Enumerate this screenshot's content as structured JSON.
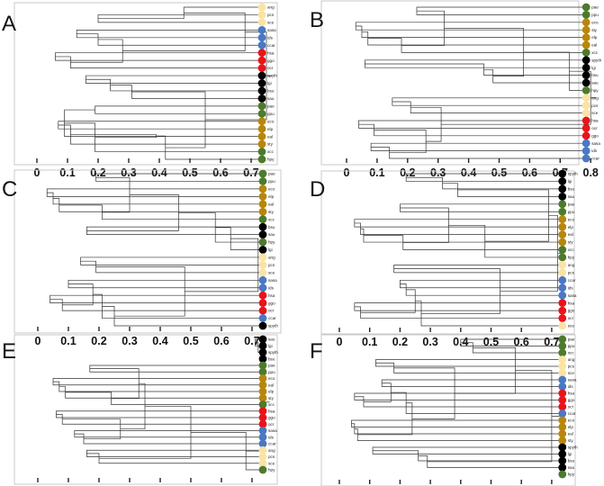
{
  "chart_data": [
    {
      "type": "dendrogram",
      "panel": "A",
      "x_ticks": [
        "0",
        "0.1",
        "0.2",
        "0.3",
        "0.4",
        "0.5",
        "0.6",
        "0.7"
      ],
      "xlim": [
        0,
        0.75
      ],
      "leaves": [
        {
          "name": "ang",
          "group": "beige"
        },
        {
          "name": "pcs",
          "group": "beige"
        },
        {
          "name": "sce",
          "group": "beige"
        },
        {
          "name": "sasa",
          "group": "blue"
        },
        {
          "name": "ids",
          "group": "blue"
        },
        {
          "name": "ccar",
          "group": "blue"
        },
        {
          "name": "hsa",
          "group": "red"
        },
        {
          "name": "ggo",
          "group": "red"
        },
        {
          "name": "ocr",
          "group": "red"
        },
        {
          "name": "spyth",
          "group": "black"
        },
        {
          "name": "lgi",
          "group": "black"
        },
        {
          "name": "bsu",
          "group": "black"
        },
        {
          "name": "sau",
          "group": "black"
        },
        {
          "name": "pae",
          "group": "green"
        },
        {
          "name": "ppu",
          "group": "green"
        },
        {
          "name": "eco",
          "group": "gold"
        },
        {
          "name": "elp",
          "group": "gold"
        },
        {
          "name": "eal",
          "group": "gold"
        },
        {
          "name": "sty",
          "group": "gold"
        },
        {
          "name": "xcc",
          "group": "green"
        },
        {
          "name": "hpy",
          "group": "green"
        }
      ],
      "merges": [
        [
          1,
          2,
          0.2
        ],
        [
          0,
          -1,
          0.48
        ],
        [
          3,
          4,
          0.13
        ],
        [
          -3,
          5,
          0.2
        ],
        [
          6,
          7,
          0.06
        ],
        [
          -5,
          8,
          0.11
        ],
        [
          -4,
          -6,
          0.28
        ],
        [
          -2,
          -7,
          0.68
        ],
        [
          9,
          10,
          0.16
        ],
        [
          -9,
          11,
          0.24
        ],
        [
          -10,
          12,
          0.31
        ],
        [
          13,
          14,
          0.19
        ],
        [
          15,
          16,
          0.07
        ],
        [
          -12,
          17,
          0.09
        ],
        [
          -13,
          18,
          0.11
        ],
        [
          -14,
          19,
          0.19
        ],
        [
          -15,
          -16,
          0.39
        ],
        [
          -17,
          20,
          0.42
        ],
        [
          -11,
          -18,
          0.55
        ],
        [
          -8,
          -19,
          0.75
        ]
      ]
    },
    {
      "type": "dendrogram",
      "panel": "B",
      "x_ticks": [
        "0",
        "0.1",
        "0.2",
        "0.3",
        "0.4",
        "0.5",
        "0.6",
        "0.7",
        "0.8"
      ],
      "xlim": [
        0,
        0.8
      ],
      "leaves": [
        {
          "name": "pae",
          "group": "green"
        },
        {
          "name": "ppu",
          "group": "green"
        },
        {
          "name": "eco",
          "group": "gold"
        },
        {
          "name": "sty",
          "group": "gold"
        },
        {
          "name": "elp",
          "group": "gold"
        },
        {
          "name": "eal",
          "group": "gold"
        },
        {
          "name": "xcc",
          "group": "green"
        },
        {
          "name": "spyth",
          "group": "black"
        },
        {
          "name": "lgi",
          "group": "black"
        },
        {
          "name": "bsu",
          "group": "black"
        },
        {
          "name": "sau",
          "group": "black"
        },
        {
          "name": "hpy",
          "group": "green"
        },
        {
          "name": "ang",
          "group": "beige"
        },
        {
          "name": "pcs",
          "group": "beige"
        },
        {
          "name": "sce",
          "group": "beige"
        },
        {
          "name": "hsa",
          "group": "red"
        },
        {
          "name": "ocr",
          "group": "red"
        },
        {
          "name": "ggo",
          "group": "red"
        },
        {
          "name": "sasa",
          "group": "blue"
        },
        {
          "name": "ids",
          "group": "blue"
        },
        {
          "name": "ccar",
          "group": "blue"
        }
      ],
      "merges": [
        [
          0,
          1,
          0.23
        ],
        [
          2,
          3,
          0.03
        ],
        [
          -2,
          4,
          0.05
        ],
        [
          -3,
          5,
          0.07
        ],
        [
          -4,
          6,
          0.18
        ],
        [
          -1,
          -5,
          0.32
        ],
        [
          7,
          8,
          0.06
        ],
        [
          -7,
          9,
          0.45
        ],
        [
          -8,
          10,
          0.48
        ],
        [
          -6,
          -9,
          0.58
        ],
        [
          -10,
          11,
          0.73
        ],
        [
          12,
          13,
          0.15
        ],
        [
          -12,
          14,
          0.21
        ],
        [
          15,
          16,
          0.04
        ],
        [
          -14,
          17,
          0.09
        ],
        [
          18,
          19,
          0.08
        ],
        [
          -16,
          20,
          0.14
        ],
        [
          -15,
          -17,
          0.26
        ],
        [
          -13,
          -18,
          0.31
        ],
        [
          -11,
          -19,
          0.8
        ]
      ]
    },
    {
      "type": "dendrogram",
      "panel": "C",
      "x_ticks": [
        "0",
        "0.1",
        "0.2",
        "0.3",
        "0.4",
        "0.5",
        "0.6",
        "0.7"
      ],
      "xlim": [
        0,
        0.75
      ],
      "leaves": [
        {
          "name": "pae",
          "group": "green"
        },
        {
          "name": "ppu",
          "group": "green"
        },
        {
          "name": "eco",
          "group": "gold"
        },
        {
          "name": "elp",
          "group": "gold"
        },
        {
          "name": "eal",
          "group": "gold"
        },
        {
          "name": "sty",
          "group": "gold"
        },
        {
          "name": "xcc",
          "group": "green"
        },
        {
          "name": "bsu",
          "group": "black"
        },
        {
          "name": "sau",
          "group": "black"
        },
        {
          "name": "hpy",
          "group": "green"
        },
        {
          "name": "lgi",
          "group": "black"
        },
        {
          "name": "ang",
          "group": "beige"
        },
        {
          "name": "pcs",
          "group": "beige"
        },
        {
          "name": "sce",
          "group": "beige"
        },
        {
          "name": "sasa",
          "group": "blue"
        },
        {
          "name": "ids",
          "group": "blue"
        },
        {
          "name": "hsa",
          "group": "red"
        },
        {
          "name": "ggo",
          "group": "red"
        },
        {
          "name": "ocr",
          "group": "red"
        },
        {
          "name": "ccar",
          "group": "blue"
        },
        {
          "name": "spyth",
          "group": "black"
        }
      ],
      "merges": [
        [
          0,
          1,
          0.19
        ],
        [
          2,
          3,
          0.03
        ],
        [
          -2,
          4,
          0.05
        ],
        [
          -3,
          5,
          0.07
        ],
        [
          -4,
          6,
          0.21
        ],
        [
          -1,
          -5,
          0.3
        ],
        [
          7,
          8,
          0.16
        ],
        [
          -6,
          -7,
          0.46
        ],
        [
          -8,
          9,
          0.58
        ],
        [
          -9,
          10,
          0.63
        ],
        [
          11,
          12,
          0.14
        ],
        [
          -11,
          13,
          0.19
        ],
        [
          14,
          15,
          0.1
        ],
        [
          16,
          17,
          0.04
        ],
        [
          -14,
          18,
          0.08
        ],
        [
          -13,
          -15,
          0.18
        ],
        [
          -16,
          19,
          0.21
        ],
        [
          -17,
          20,
          0.25
        ],
        [
          -12,
          -18,
          0.48
        ],
        [
          -10,
          -19,
          0.72
        ]
      ]
    },
    {
      "type": "dendrogram",
      "panel": "D",
      "x_ticks": [
        "0",
        "0.1",
        "0.2",
        "0.3",
        "0.4",
        "0.5",
        "0.6",
        "0.7"
      ],
      "xlim": [
        0,
        0.75
      ],
      "leaves": [
        {
          "name": "spyth",
          "group": "black"
        },
        {
          "name": "lgi",
          "group": "black"
        },
        {
          "name": "bsu",
          "group": "black"
        },
        {
          "name": "sau",
          "group": "black"
        },
        {
          "name": "pae",
          "group": "green"
        },
        {
          "name": "ppu",
          "group": "green"
        },
        {
          "name": "eco",
          "group": "gold"
        },
        {
          "name": "elp",
          "group": "gold"
        },
        {
          "name": "eal",
          "group": "gold"
        },
        {
          "name": "sty",
          "group": "gold"
        },
        {
          "name": "xcc",
          "group": "green"
        },
        {
          "name": "hpy",
          "group": "green"
        },
        {
          "name": "ang",
          "group": "beige"
        },
        {
          "name": "pcs",
          "group": "beige"
        },
        {
          "name": "ccar",
          "group": "blue"
        },
        {
          "name": "ids",
          "group": "blue"
        },
        {
          "name": "sasa",
          "group": "blue"
        },
        {
          "name": "hsa",
          "group": "red"
        },
        {
          "name": "ggo",
          "group": "red"
        },
        {
          "name": "ocr",
          "group": "red"
        },
        {
          "name": "sce",
          "group": "beige"
        }
      ],
      "merges": [
        [
          0,
          1,
          0.22
        ],
        [
          -1,
          2,
          0.34
        ],
        [
          -2,
          3,
          0.39
        ],
        [
          4,
          5,
          0.2
        ],
        [
          6,
          7,
          0.05
        ],
        [
          -5,
          8,
          0.07
        ],
        [
          -6,
          9,
          0.08
        ],
        [
          -7,
          10,
          0.21
        ],
        [
          -4,
          -8,
          0.36
        ],
        [
          -9,
          11,
          0.48
        ],
        [
          -3,
          -10,
          0.69
        ],
        [
          12,
          13,
          0.18
        ],
        [
          14,
          15,
          0.2
        ],
        [
          -13,
          16,
          0.22
        ],
        [
          17,
          18,
          0.05
        ],
        [
          -15,
          19,
          0.07
        ],
        [
          -14,
          -16,
          0.25
        ],
        [
          -17,
          20,
          0.27
        ],
        [
          -12,
          -18,
          0.53
        ],
        [
          -11,
          -19,
          0.72
        ]
      ]
    },
    {
      "type": "dendrogram",
      "panel": "E",
      "x_ticks": [
        "0",
        "0.1",
        "0.2",
        "0.3",
        "0.4",
        "0.5",
        "0.6",
        "0.7"
      ],
      "xlim": [
        0,
        0.75
      ],
      "leaves": [
        {
          "name": "sau",
          "group": "black"
        },
        {
          "name": "lgi",
          "group": "black"
        },
        {
          "name": "spyth",
          "group": "black"
        },
        {
          "name": "bsu",
          "group": "black"
        },
        {
          "name": "pae",
          "group": "green"
        },
        {
          "name": "ppu",
          "group": "green"
        },
        {
          "name": "eco",
          "group": "gold"
        },
        {
          "name": "eal",
          "group": "gold"
        },
        {
          "name": "elp",
          "group": "gold"
        },
        {
          "name": "sty",
          "group": "gold"
        },
        {
          "name": "xcc",
          "group": "green"
        },
        {
          "name": "hsa",
          "group": "red"
        },
        {
          "name": "ggo",
          "group": "red"
        },
        {
          "name": "ocr",
          "group": "red"
        },
        {
          "name": "sasa",
          "group": "blue"
        },
        {
          "name": "ids",
          "group": "blue"
        },
        {
          "name": "ccar",
          "group": "blue"
        },
        {
          "name": "ang",
          "group": "beige"
        },
        {
          "name": "pcs",
          "group": "beige"
        },
        {
          "name": "sce",
          "group": "beige"
        },
        {
          "name": "hpy",
          "group": "green"
        }
      ],
      "merges": [
        [
          0,
          1,
          0.71
        ],
        [
          -1,
          2,
          0.72
        ],
        [
          -2,
          3,
          0.73
        ],
        [
          4,
          5,
          0.17
        ],
        [
          6,
          7,
          0.05
        ],
        [
          -5,
          8,
          0.07
        ],
        [
          -6,
          9,
          0.09
        ],
        [
          -7,
          10,
          0.24
        ],
        [
          -4,
          -8,
          0.33
        ],
        [
          11,
          12,
          0.06
        ],
        [
          -10,
          13,
          0.08
        ],
        [
          14,
          15,
          0.12
        ],
        [
          -12,
          16,
          0.15
        ],
        [
          -11,
          -13,
          0.27
        ],
        [
          -9,
          -14,
          0.35
        ],
        [
          17,
          18,
          0.16
        ],
        [
          -16,
          19,
          0.2
        ],
        [
          -15,
          -17,
          0.5
        ],
        [
          -18,
          20,
          0.68
        ],
        [
          -3,
          -19,
          0.74
        ]
      ]
    },
    {
      "type": "dendrogram",
      "panel": "F",
      "x_ticks": [
        "0",
        "0.1",
        "0.2",
        "0.3",
        "0.4",
        "0.5",
        "0.6",
        "0.7"
      ],
      "xlim": [
        0,
        0.75
      ],
      "leaves": [
        {
          "name": "pae",
          "group": "green"
        },
        {
          "name": "ppu",
          "group": "green"
        },
        {
          "name": "xcc",
          "group": "green"
        },
        {
          "name": "ang",
          "group": "beige"
        },
        {
          "name": "pcs",
          "group": "beige"
        },
        {
          "name": "sce",
          "group": "beige"
        },
        {
          "name": "sasa",
          "group": "blue"
        },
        {
          "name": "ids",
          "group": "blue"
        },
        {
          "name": "hsa",
          "group": "red"
        },
        {
          "name": "ggo",
          "group": "red"
        },
        {
          "name": "ocr",
          "group": "red"
        },
        {
          "name": "ccar",
          "group": "blue"
        },
        {
          "name": "eco",
          "group": "gold"
        },
        {
          "name": "elp",
          "group": "gold"
        },
        {
          "name": "eal",
          "group": "gold"
        },
        {
          "name": "sty",
          "group": "gold"
        },
        {
          "name": "spyth",
          "group": "black"
        },
        {
          "name": "lgi",
          "group": "black"
        },
        {
          "name": "bsu",
          "group": "black"
        },
        {
          "name": "sau",
          "group": "black"
        },
        {
          "name": "hpy",
          "group": "green"
        }
      ],
      "merges": [
        [
          0,
          1,
          0.4
        ],
        [
          -1,
          2,
          0.44
        ],
        [
          3,
          4,
          0.12
        ],
        [
          -3,
          5,
          0.18
        ],
        [
          6,
          7,
          0.14
        ],
        [
          8,
          9,
          0.05
        ],
        [
          -6,
          10,
          0.08
        ],
        [
          -5,
          -7,
          0.17
        ],
        [
          -8,
          11,
          0.22
        ],
        [
          12,
          13,
          0.04
        ],
        [
          -10,
          14,
          0.05
        ],
        [
          -11,
          15,
          0.06
        ],
        [
          -9,
          -12,
          0.24
        ],
        [
          -4,
          -13,
          0.38
        ],
        [
          -2,
          -14,
          0.58
        ],
        [
          16,
          17,
          0.11
        ],
        [
          -16,
          18,
          0.26
        ],
        [
          -17,
          19,
          0.29
        ],
        [
          -15,
          -18,
          0.7
        ],
        [
          -19,
          20,
          0.73
        ]
      ]
    }
  ],
  "colors": {
    "green": "#4d7a2c",
    "gold": "#b8860b",
    "beige": "#fbe3a4",
    "blue": "#4a78c4",
    "red": "#e8141a",
    "black": "#000000",
    "branch": "#333333",
    "frame": "#c9c9c9"
  }
}
